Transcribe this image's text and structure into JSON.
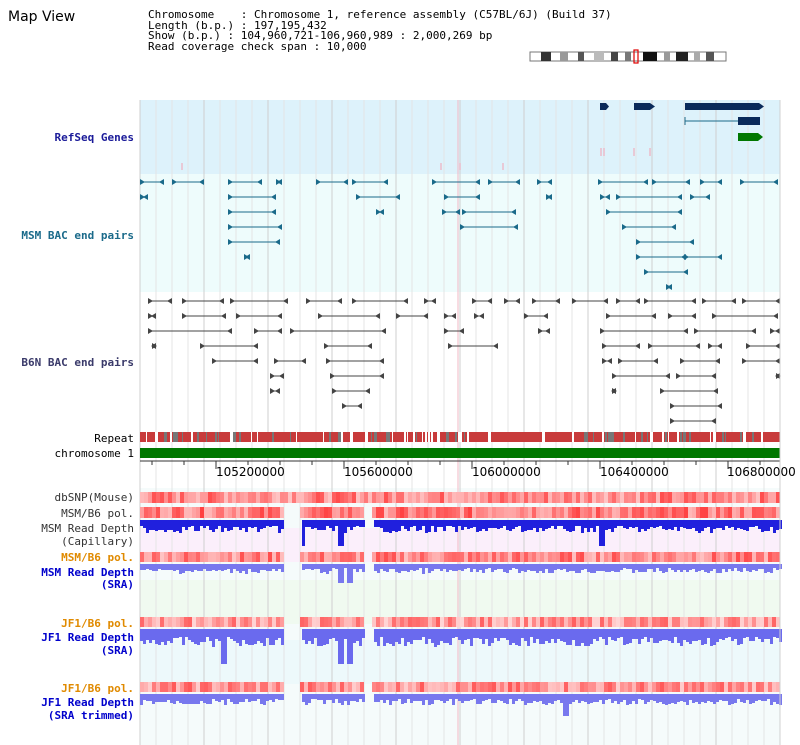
{
  "title": "Map View",
  "info": {
    "chromosome": "Chromosome    : Chromosome 1, reference assembly (C57BL/6J) (Build 37)",
    "length": "Length (b.p.) : 197,195,432",
    "show": "Show (b.p.) : 104,960,721-106,960,989 : 2,000,269 bp",
    "span": "Read coverage check span : 10,000"
  },
  "labels": {
    "refseq": "RefSeq Genes",
    "msm_bac": "MSM BAC end pairs",
    "b6n_bac": "B6N BAC end pairs",
    "repeat": "Repeat",
    "chromosome": "chromosome 1",
    "dbsnp": "dbSNP(Mouse)",
    "msm_b6_pol_1": "MSM/B6 pol.",
    "msm_depth_cap_1": "MSM Read Depth",
    "msm_depth_cap_2": "(Capillary)",
    "msm_b6_pol_2": "MSM/B6 pol.",
    "msm_depth_sra_1": "MSM Read Depth",
    "msm_depth_sra_2": "(SRA)",
    "jf1_b6_pol_1": "JF1/B6 pol.",
    "jf1_depth_sra_1": "JF1 Read Depth",
    "jf1_depth_sra_2": "(SRA)",
    "jf1_b6_pol_2": "JF1/B6 pol.",
    "jf1_depth_trim_1": "JF1 Read Depth",
    "jf1_depth_trim_2": "(SRA trimmed)"
  },
  "ticks": [
    "105200000",
    "105600000",
    "106000000",
    "106400000",
    "106800000"
  ],
  "colors": {
    "refseq_label": "#1a1a99",
    "msm_label": "#1a6a8a",
    "b6n_label": "#3a3a6a",
    "orange_label": "#e08a00",
    "depth_label": "#0000cc",
    "chromosome_bar": "#007700",
    "refseq_band": "#ddf2fb",
    "gene_navy": "#0a2a5a"
  }
}
